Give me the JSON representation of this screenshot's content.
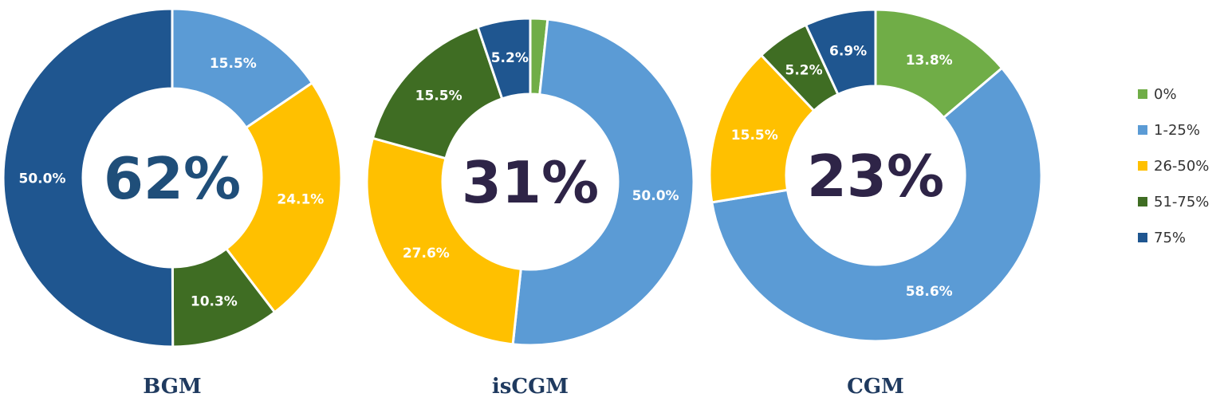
{
  "chart_data": [
    {
      "type": "pie",
      "title": "BGM",
      "center_label": "62%",
      "center_color": "#1f4e79",
      "categories": [
        "0%",
        "1-25%",
        "26-50%",
        "51-75%",
        "75%"
      ],
      "values": [
        0,
        15.5,
        24.1,
        10.3,
        50.0
      ],
      "value_labels": [
        "",
        "15.5%",
        "24.1%",
        "10.3%",
        "50.0%"
      ]
    },
    {
      "type": "pie",
      "title": "isCGM",
      "center_label": "31%",
      "center_color": "#2e2447",
      "categories": [
        "0%",
        "1-25%",
        "26-50%",
        "51-75%",
        "75%"
      ],
      "values": [
        1.7,
        50.0,
        27.6,
        15.5,
        5.2
      ],
      "value_labels": [
        "",
        "50.0%",
        "27.6%",
        "15.5%",
        "5.2%"
      ]
    },
    {
      "type": "pie",
      "title": "CGM",
      "center_label": "23%",
      "center_color": "#2e2447",
      "categories": [
        "0%",
        "1-25%",
        "26-50%",
        "51-75%",
        "75%"
      ],
      "values": [
        13.8,
        58.6,
        15.5,
        5.2,
        6.9
      ],
      "value_labels": [
        "13.8%",
        "58.6%",
        "15.5%",
        "5.2%",
        "6.9%"
      ]
    }
  ],
  "legend": {
    "placement": "right",
    "items": [
      {
        "label": "0%",
        "color": "#70ad47"
      },
      {
        "label": "1-25%",
        "color": "#5b9bd5"
      },
      {
        "label": "26-50%",
        "color": "#ffc000"
      },
      {
        "label": "51-75%",
        "color": "#3f6d23"
      },
      {
        "label": "75%",
        "color": "#1f5690"
      }
    ]
  }
}
